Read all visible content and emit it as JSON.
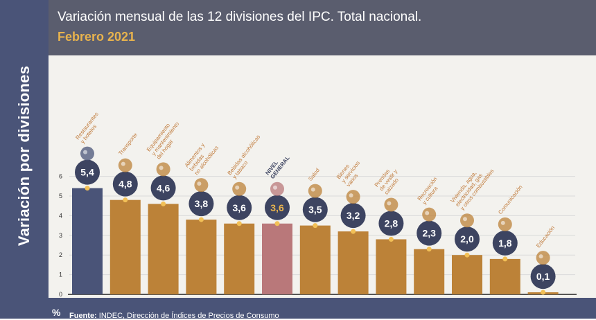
{
  "sidebar": {
    "title": "Variación por divisiones"
  },
  "header": {
    "title": "Variación mensual de las 12 divisiones del IPC. Total nacional.",
    "subtitle": "Febrero 2021"
  },
  "footer": {
    "unit": "%",
    "source_label": "Fuente:",
    "source_text": " INDEC, Dirección de Índices de Precios de Consumo"
  },
  "colors": {
    "bar_default": "#bc8238",
    "bar_first": "#4a5478",
    "bar_general": "#b9787a",
    "badge": "#3d4461",
    "badge_text": "#ffffff",
    "badge_text_general": "#e8b34d",
    "label_text": "#c07a3a",
    "dot": "#f2c057"
  },
  "chart_data": {
    "type": "bar",
    "title": "Variación mensual de las 12 divisiones del IPC. Total nacional.",
    "subtitle": "Febrero 2021",
    "ylabel": "%",
    "ylim": [
      0,
      6
    ],
    "yticks": [
      "0",
      "1",
      "2",
      "3",
      "4",
      "5",
      "6"
    ],
    "grid": true,
    "categories": [
      "Restaurantes y hoteles",
      "Transporte",
      "Equipamiento y mantenimiento del hogar",
      "Alimentos y bebidas no alcohólicas",
      "Bebidas alcohólicas y tabaco",
      "NIVEL GENERAL",
      "Salud",
      "Bienes y servicios varios",
      "Prendas de vestir y calzado",
      "Recreación y cultura",
      "Vivienda, agua, electricidad, gas y otros combustibles",
      "Comunicación",
      "Educación"
    ],
    "label_lines": [
      [
        "Restaurantes",
        "y hoteles"
      ],
      [
        "Transporte"
      ],
      [
        "Equipamiento",
        "y mantenimiento",
        "del hogar"
      ],
      [
        "Alimentos y",
        "bebidas",
        "no alcohólicas"
      ],
      [
        "Bebidas alcohólicas",
        "y tabaco"
      ],
      [
        "NIVEL",
        "GENERAL"
      ],
      [
        "Salud"
      ],
      [
        "Bienes",
        "y servicios",
        "varios"
      ],
      [
        "Prendas",
        "de vestir y",
        "calzado"
      ],
      [
        "Recreación",
        "y cultura"
      ],
      [
        "Vivienda, agua,",
        "electricidad, gas",
        "y otros combustibles"
      ],
      [
        "Comunicación"
      ],
      [
        "Educación"
      ]
    ],
    "values": [
      5.4,
      4.8,
      4.6,
      3.8,
      3.6,
      3.6,
      3.5,
      3.2,
      2.8,
      2.3,
      2.0,
      1.8,
      0.1
    ],
    "value_labels": [
      "5,4",
      "4,8",
      "4,6",
      "3,8",
      "3,6",
      "3,6",
      "3,5",
      "3,2",
      "2,8",
      "2,3",
      "2,0",
      "1,8",
      "0,1"
    ],
    "icons": [
      "restaurant-icon",
      "car-icon",
      "washing-machine-icon",
      "food-basket-icon",
      "bottle-icon",
      "shopping-basket-icon",
      "health-cross-icon",
      "scissors-icon",
      "tshirt-icon",
      "sun-icon",
      "house-tools-icon",
      "mobile-phone-icon",
      "book-icon"
    ]
  }
}
